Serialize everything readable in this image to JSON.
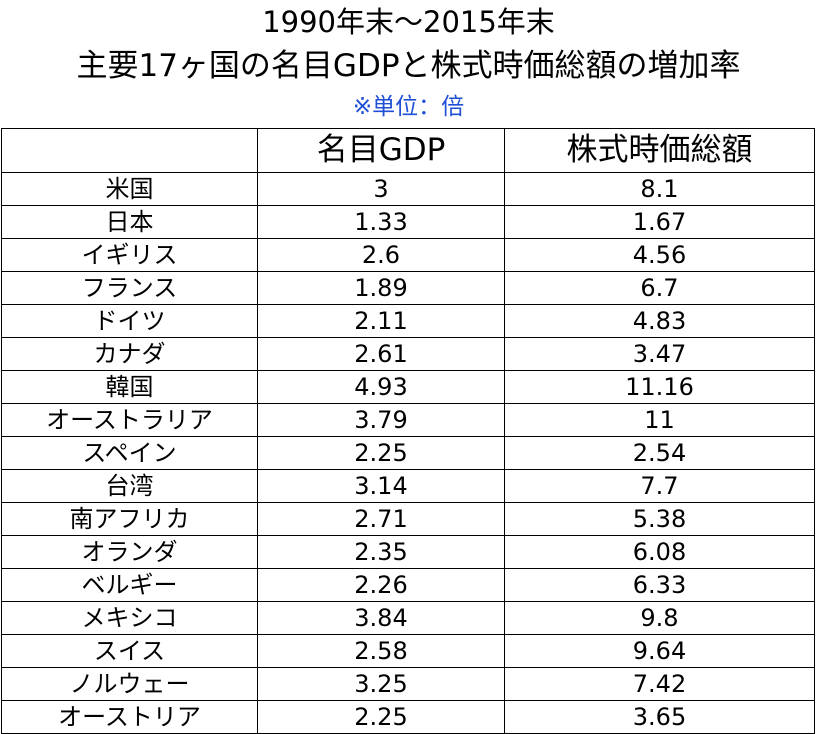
{
  "title_line1": "1990年末～2015年末",
  "title_line2": "主要17ヶ国の名目GDPと株式時価総額の増加率",
  "unit_note": "※単位：倍",
  "colors": {
    "unit_note": "#1f4fd6",
    "border": "#000000"
  },
  "chart_data": {
    "type": "table",
    "title": "1990年末～2015年末 主要17ヶ国の名目GDPと株式時価総額の増加率",
    "unit": "※単位：倍",
    "columns": [
      "",
      "名目GDP",
      "株式時価総額"
    ],
    "rows": [
      [
        "米国",
        "3",
        "8.1"
      ],
      [
        "日本",
        "1.33",
        "1.67"
      ],
      [
        "イギリス",
        "2.6",
        "4.56"
      ],
      [
        "フランス",
        "1.89",
        "6.7"
      ],
      [
        "ドイツ",
        "2.11",
        "4.83"
      ],
      [
        "カナダ",
        "2.61",
        "3.47"
      ],
      [
        "韓国",
        "4.93",
        "11.16"
      ],
      [
        "オーストラリア",
        "3.79",
        "11"
      ],
      [
        "スペイン",
        "2.25",
        "2.54"
      ],
      [
        "台湾",
        "3.14",
        "7.7"
      ],
      [
        "南アフリカ",
        "2.71",
        "5.38"
      ],
      [
        "オランダ",
        "2.35",
        "6.08"
      ],
      [
        "ベルギー",
        "2.26",
        "6.33"
      ],
      [
        "メキシコ",
        "3.84",
        "9.8"
      ],
      [
        "スイス",
        "2.58",
        "9.64"
      ],
      [
        "ノルウェー",
        "3.25",
        "7.42"
      ],
      [
        "オーストリア",
        "2.25",
        "3.65"
      ]
    ]
  }
}
